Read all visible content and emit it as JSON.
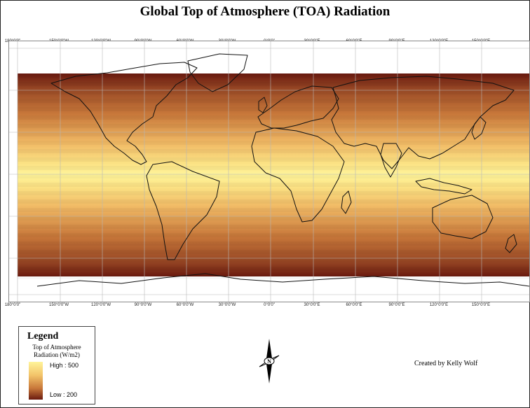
{
  "title": "Global Top of Atmosphere (TOA) Radiation",
  "longitude_labels": [
    "180°0'0\"",
    "150°0'0\"W",
    "120°0'0\"W",
    "90°0'0\"W",
    "60°0'0\"W",
    "30°0'0\"W",
    "0°0'0\"",
    "30°0'0\"E",
    "60°0'0\"E",
    "90°0'0\"E",
    "120°0'0\"E",
    "150°0'0\"E"
  ],
  "legend": {
    "title": "Legend",
    "subtitle_line1": "Top of Atmosphere",
    "subtitle_line2": "Radiation (W/m2)",
    "high_label": "High : 500",
    "low_label": "Low : 200",
    "colors": {
      "high": "#fff49a",
      "mid": "#e9a353",
      "low": "#6b1a0f"
    }
  },
  "credit": "Created by Kelly Wolf",
  "north_arrow_label": "N",
  "colors": {
    "land_outline": "#111111",
    "grid": "#b8b8b8"
  }
}
